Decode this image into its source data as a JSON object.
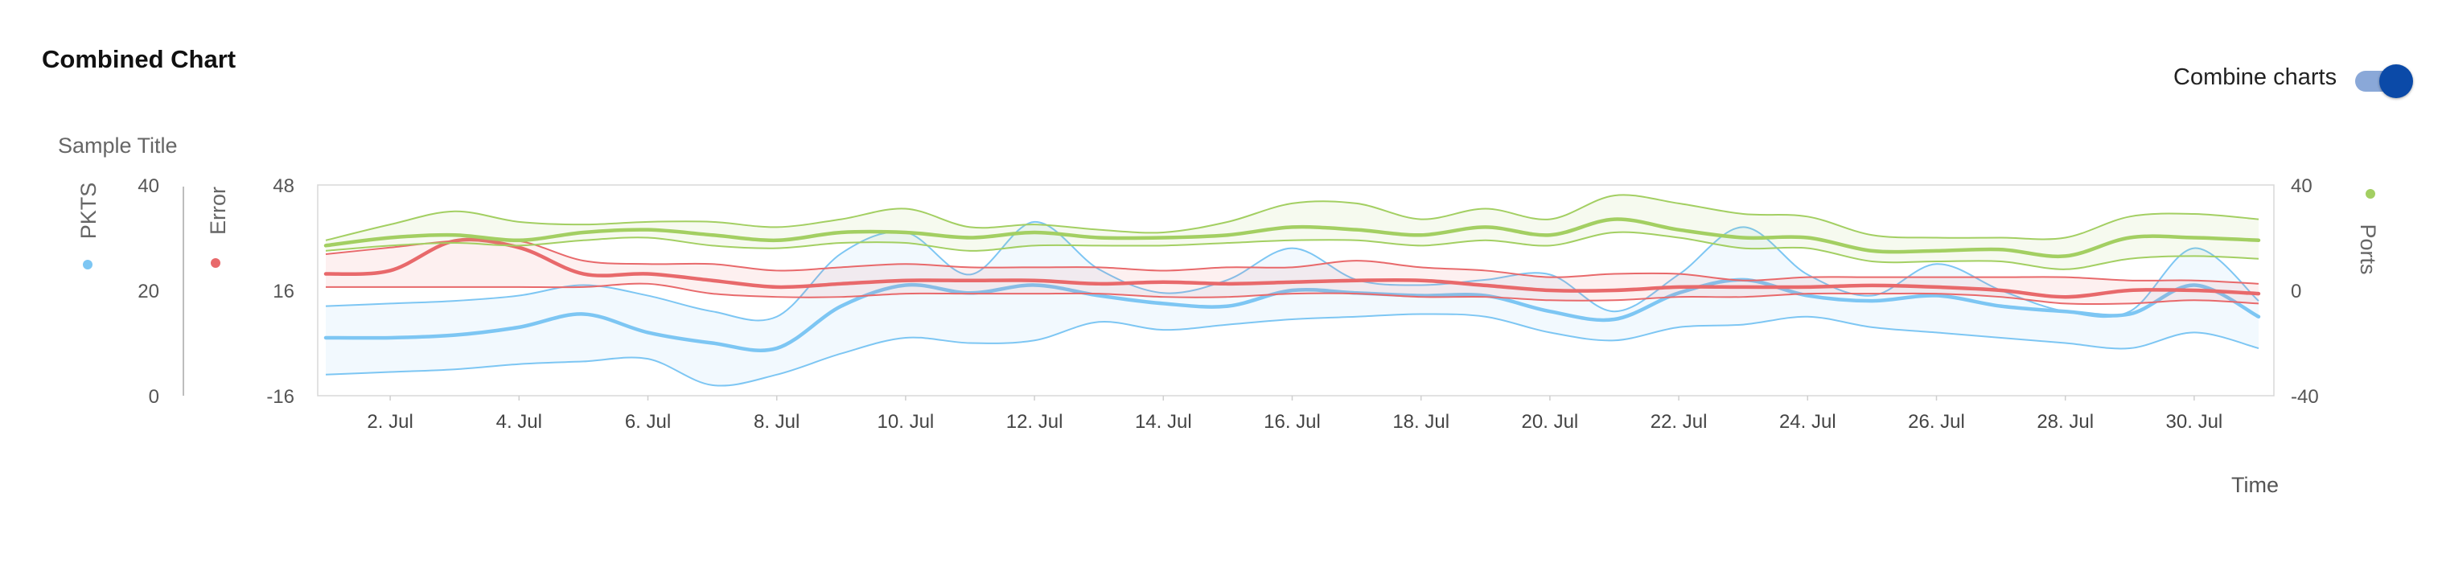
{
  "header": {
    "title": "Combined Chart",
    "combine_label": "Combine charts",
    "combine_on": true
  },
  "chart_data": {
    "type": "area",
    "title": "Sample Title",
    "xlabel": "Time",
    "x_days": [
      1,
      2,
      3,
      4,
      5,
      6,
      7,
      8,
      9,
      10,
      11,
      12,
      13,
      14,
      15,
      16,
      17,
      18,
      19,
      20,
      21,
      22,
      23,
      24,
      25,
      26,
      27,
      28,
      29,
      30,
      31
    ],
    "x_ticks": [
      "2. Jul",
      "4. Jul",
      "6. Jul",
      "8. Jul",
      "10. Jul",
      "12. Jul",
      "14. Jul",
      "16. Jul",
      "18. Jul",
      "20. Jul",
      "22. Jul",
      "24. Jul",
      "26. Jul",
      "28. Jul",
      "30. Jul"
    ],
    "axes": {
      "PKTS": {
        "label": "PKTS",
        "ticks": [
          "40",
          "20",
          "0"
        ],
        "min": 0,
        "max": 40,
        "side": "left"
      },
      "Error": {
        "label": "Error",
        "ticks": [
          "48",
          "16",
          "-16"
        ],
        "min": -16,
        "max": 48,
        "side": "left"
      },
      "Ports": {
        "label": "Ports",
        "ticks": [
          "40",
          "0",
          "-40"
        ],
        "min": -40,
        "max": 40,
        "side": "right"
      }
    },
    "series": [
      {
        "name": "PKTS",
        "axis": "PKTS",
        "color": "#7dc6f3",
        "values": [
          11,
          11,
          11.5,
          13,
          15.5,
          12,
          10,
          9,
          17,
          21,
          19.5,
          21,
          19,
          17.5,
          17,
          20,
          19.5,
          19,
          19,
          16,
          14.5,
          19.5,
          22,
          19,
          18,
          19,
          17,
          16,
          15.5,
          21,
          15
        ],
        "high": [
          17,
          17.5,
          18,
          19,
          21,
          19,
          16,
          15,
          27,
          31,
          23,
          33,
          24,
          19.5,
          22,
          28,
          22,
          21,
          22,
          23,
          16,
          23,
          32,
          23,
          19,
          25,
          20,
          16,
          16,
          28,
          18
        ],
        "low": [
          4,
          4.5,
          5,
          6,
          6.5,
          7,
          2,
          4,
          8,
          11,
          10,
          10.5,
          14,
          12.5,
          13.5,
          14.5,
          15,
          15.5,
          15,
          12,
          10.5,
          13,
          13.5,
          15,
          13,
          12,
          11,
          10,
          9,
          12,
          9
        ]
      },
      {
        "name": "Error",
        "axis": "Error",
        "color": "#e8696b",
        "values": [
          21,
          22,
          31,
          29,
          21,
          21,
          19,
          17,
          18,
          19,
          19,
          19,
          18,
          18.5,
          18,
          18.5,
          19,
          19,
          17.5,
          16,
          16,
          17,
          17,
          17,
          17.5,
          17,
          16,
          14,
          16,
          16,
          15
        ],
        "high": [
          27,
          29,
          31,
          31,
          25,
          24,
          24,
          22,
          23,
          24,
          23,
          23,
          23,
          22,
          23,
          23,
          25,
          23,
          22,
          20,
          21,
          21,
          19,
          20,
          20,
          20,
          20,
          20,
          19,
          19,
          18
        ],
        "low": [
          17,
          17,
          17,
          17,
          17,
          18,
          15,
          14,
          14,
          15,
          15,
          15,
          15,
          14,
          14,
          15,
          15,
          14,
          14,
          13,
          13,
          14,
          14,
          15,
          15,
          15,
          14,
          12,
          12,
          13,
          12
        ]
      },
      {
        "name": "Ports",
        "axis": "Ports",
        "color": "#a3cf62",
        "values": [
          17,
          20,
          21,
          19,
          22,
          23,
          21,
          19,
          22,
          22,
          20,
          22,
          20,
          20,
          21,
          24,
          23,
          21,
          24,
          21,
          27,
          23,
          20,
          20,
          15,
          15,
          15.5,
          13,
          20,
          20,
          19
        ],
        "high": [
          19,
          25,
          30,
          26,
          25,
          26,
          26,
          24,
          27,
          31,
          24,
          25,
          23,
          22,
          26,
          33,
          33,
          27,
          31,
          27,
          36,
          33,
          29,
          28,
          21,
          20,
          20,
          20,
          28,
          29,
          27
        ],
        "low": [
          15,
          17,
          18,
          17,
          19,
          20,
          17,
          16,
          18,
          18,
          15,
          17,
          17,
          17,
          18,
          19,
          19,
          17,
          19,
          17,
          22,
          20,
          16,
          16,
          11,
          11,
          11,
          8,
          12,
          13,
          12
        ]
      }
    ]
  }
}
